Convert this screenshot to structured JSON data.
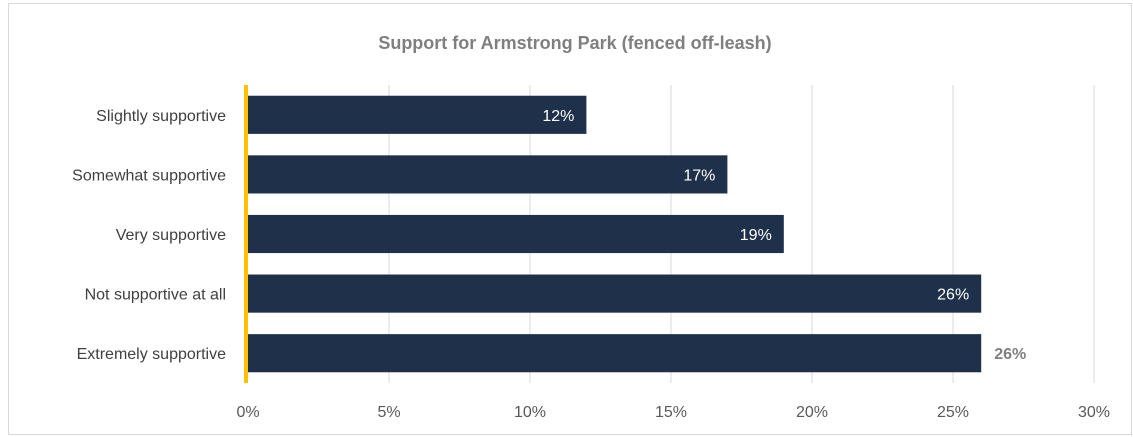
{
  "chart_data": {
    "type": "bar",
    "orientation": "horizontal",
    "title": "Support for Armstrong Park (fenced off-leash)",
    "categories": [
      "Slightly supportive",
      "Somewhat supportive",
      "Very supportive",
      "Not supportive at all",
      "Extremely supportive"
    ],
    "values": [
      12,
      17,
      19,
      26,
      26
    ],
    "data_labels": [
      "12%",
      "17%",
      "19%",
      "26%",
      "26%"
    ],
    "x_ticks": [
      "0%",
      "5%",
      "10%",
      "15%",
      "20%",
      "25%",
      "30%"
    ],
    "xlim": [
      0,
      30
    ],
    "xlabel": "",
    "ylabel": "",
    "grid": true,
    "legend": "none",
    "colors": {
      "bar": "#1f304a",
      "axis": "#ffc000",
      "grid": "#d9d9d9"
    }
  }
}
